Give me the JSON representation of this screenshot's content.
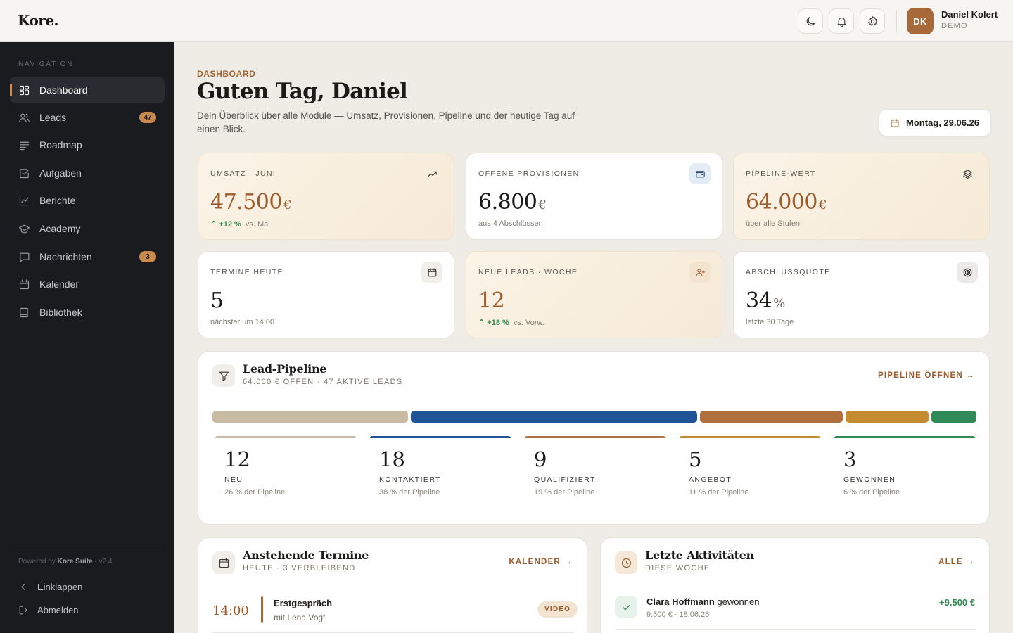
{
  "app": {
    "logo": "Kore."
  },
  "user": {
    "initials": "DK",
    "name": "Daniel Kolert",
    "role": "DEMO"
  },
  "sidebar": {
    "heading": "NAVIGATION",
    "items": [
      {
        "label": "Dashboard",
        "icon": "grid-icon",
        "active": true
      },
      {
        "label": "Leads",
        "icon": "users-icon",
        "badge": "47"
      },
      {
        "label": "Roadmap",
        "icon": "list-icon"
      },
      {
        "label": "Aufgaben",
        "icon": "checkbox-icon"
      },
      {
        "label": "Berichte",
        "icon": "chart-icon"
      },
      {
        "label": "Academy",
        "icon": "graduation-cap-icon"
      },
      {
        "label": "Nachrichten",
        "icon": "message-icon",
        "badge": "3"
      },
      {
        "label": "Kalender",
        "icon": "calendar-icon"
      },
      {
        "label": "Bibliothek",
        "icon": "book-icon"
      }
    ],
    "powered_prefix": "Powered by",
    "powered_brand": "Kore Suite",
    "version": "· v2.4",
    "collapse": "Einklappen",
    "logout": "Abmelden"
  },
  "header": {
    "eyebrow": "DASHBOARD",
    "greeting": "Guten Tag, Daniel",
    "intro": "Dein Überblick über alle Module — Umsatz, Provisionen, Pipeline und der heutige Tag auf einen Blick.",
    "date": "Montag, 29.06.26"
  },
  "kpis": [
    {
      "label": "UMSATZ · JUNI",
      "value": "47.500",
      "unit": "€",
      "trend": "+12 %",
      "sub": "vs. Mai",
      "icon": "trending-up-icon"
    },
    {
      "label": "OFFENE PROVISIONEN",
      "value": "6.800",
      "unit": "€",
      "sub": "aus 4 Abschlüssen",
      "icon": "wallet-icon"
    },
    {
      "label": "PIPELINE-WERT",
      "value": "64.000",
      "unit": "€",
      "sub": "über alle Stufen",
      "icon": "layers-icon"
    },
    {
      "label": "TERMINE HEUTE",
      "value": "5",
      "unit": "",
      "sub": "nächster um 14:00",
      "icon": "calendar-icon"
    },
    {
      "label": "NEUE LEADS · WOCHE",
      "value": "12",
      "unit": "",
      "trend": "+18 %",
      "sub": "vs. Vorw.",
      "icon": "user-plus-icon"
    },
    {
      "label": "ABSCHLUSSQUOTE",
      "value": "34",
      "unit": "%",
      "sub": "letzte 30 Tage",
      "icon": "target-icon"
    }
  ],
  "pipeline": {
    "title": "Lead-Pipeline",
    "subtitle": "64.000 € OFFEN · 47 AKTIVE LEADS",
    "link": "PIPELINE ÖFFNEN",
    "stages": [
      {
        "count": "12",
        "name": "NEU",
        "share": "26 % der Pipeline",
        "fraction": 0.26,
        "color": "#c9bba3"
      },
      {
        "count": "18",
        "name": "KONTAKTIERT",
        "share": "38 % der Pipeline",
        "fraction": 0.38,
        "color": "#1f5596"
      },
      {
        "count": "9",
        "name": "QUALIFIZIERT",
        "share": "19 % der Pipeline",
        "fraction": 0.19,
        "color": "#b06f3c"
      },
      {
        "count": "5",
        "name": "ANGEBOT",
        "share": "11 % der Pipeline",
        "fraction": 0.11,
        "color": "#c58b31"
      },
      {
        "count": "3",
        "name": "GEWONNEN",
        "share": "6 % der Pipeline",
        "fraction": 0.06,
        "color": "#2f8a57"
      }
    ]
  },
  "appointments": {
    "title": "Anstehende Termine",
    "subtitle": "HEUTE · 3 VERBLEIBEND",
    "link": "KALENDER",
    "items": [
      {
        "time": "14:00",
        "title": "Erstgespräch",
        "with": "mit Lena Vogt",
        "tag": "VIDEO"
      }
    ]
  },
  "activities": {
    "title": "Letzte Aktivitäten",
    "subtitle": "DIESE WOCHE",
    "link": "ALLE",
    "items": [
      {
        "name": "Clara Hoffmann",
        "action": "gewonnen",
        "meta": "9.500 € · 18.06.26",
        "amount": "+9.500 €"
      }
    ]
  }
}
